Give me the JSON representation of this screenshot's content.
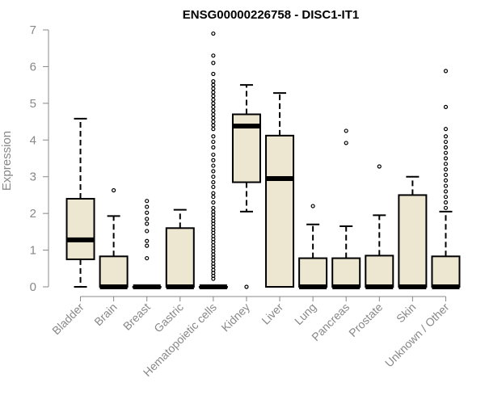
{
  "chart_data": {
    "type": "boxplot",
    "title": "ENSG00000226758 - DISC1-IT1",
    "ylabel": "Expression",
    "xlabel": "",
    "ylim": [
      0,
      7
    ],
    "yticks": [
      0,
      1,
      2,
      3,
      4,
      5,
      6,
      7
    ],
    "grid": false,
    "box_fill": "#ede7d1",
    "categories": [
      "Bladder",
      "Brain",
      "Breast",
      "Gastric",
      "Hematopoietic cells",
      "Kidney",
      "Liver",
      "Lung",
      "Pancreas",
      "Prostate",
      "Skin",
      "Unknown / Other"
    ],
    "boxes": [
      {
        "whisker_low": 0,
        "q1": 0.75,
        "median": 1.28,
        "q3": 2.4,
        "whisker_high": 4.58,
        "outliers": []
      },
      {
        "whisker_low": 0,
        "q1": 0,
        "median": 0,
        "q3": 0.83,
        "whisker_high": 1.93,
        "outliers": [
          2.63
        ]
      },
      {
        "whisker_low": 0,
        "q1": 0,
        "median": 0,
        "q3": 0,
        "whisker_high": 0,
        "outliers": [
          0.78,
          1.12,
          1.25,
          1.52,
          1.72,
          1.85,
          2.02,
          2.18,
          2.34
        ]
      },
      {
        "whisker_low": 0,
        "q1": 0,
        "median": 0,
        "q3": 1.6,
        "whisker_high": 2.1,
        "outliers": []
      },
      {
        "whisker_low": 0,
        "q1": 0,
        "median": 0,
        "q3": 0,
        "whisker_high": 0,
        "outliers": [
          0.22,
          0.3,
          0.38,
          0.46,
          0.55,
          0.63,
          0.72,
          0.8,
          0.88,
          0.97,
          1.05,
          1.13,
          1.22,
          1.3,
          1.38,
          1.47,
          1.55,
          1.63,
          1.72,
          1.8,
          1.88,
          1.97,
          2.05,
          2.15,
          2.3,
          2.45,
          2.55,
          2.72,
          2.85,
          3.0,
          3.15,
          3.3,
          3.45,
          3.6,
          3.8,
          3.95,
          4.1,
          4.3,
          4.4,
          4.5,
          4.6,
          4.7,
          4.8,
          4.9,
          5.0,
          5.1,
          5.2,
          5.3,
          5.4,
          5.5,
          5.6,
          5.8,
          6.1,
          6.3,
          6.9
        ]
      },
      {
        "whisker_low": 2.05,
        "q1": 2.85,
        "median": 4.38,
        "q3": 4.7,
        "whisker_high": 5.5,
        "outliers": [
          0
        ]
      },
      {
        "whisker_low": 0,
        "q1": 0,
        "median": 2.95,
        "q3": 4.12,
        "whisker_high": 5.28,
        "outliers": []
      },
      {
        "whisker_low": 0,
        "q1": 0,
        "median": 0,
        "q3": 0.78,
        "whisker_high": 1.7,
        "outliers": [
          2.2
        ]
      },
      {
        "whisker_low": 0,
        "q1": 0,
        "median": 0,
        "q3": 0.78,
        "whisker_high": 1.65,
        "outliers": [
          3.92,
          4.25
        ]
      },
      {
        "whisker_low": 0,
        "q1": 0,
        "median": 0,
        "q3": 0.85,
        "whisker_high": 1.95,
        "outliers": [
          3.28
        ]
      },
      {
        "whisker_low": 0,
        "q1": 0,
        "median": 0,
        "q3": 2.5,
        "whisker_high": 3.0,
        "outliers": []
      },
      {
        "whisker_low": 0,
        "q1": 0,
        "median": 0,
        "q3": 0.83,
        "whisker_high": 2.05,
        "outliers": [
          2.15,
          2.3,
          2.45,
          2.6,
          2.75,
          2.9,
          3.05,
          3.2,
          3.35,
          3.5,
          3.65,
          3.8,
          3.95,
          4.1,
          4.3,
          4.9,
          5.88
        ]
      }
    ]
  }
}
